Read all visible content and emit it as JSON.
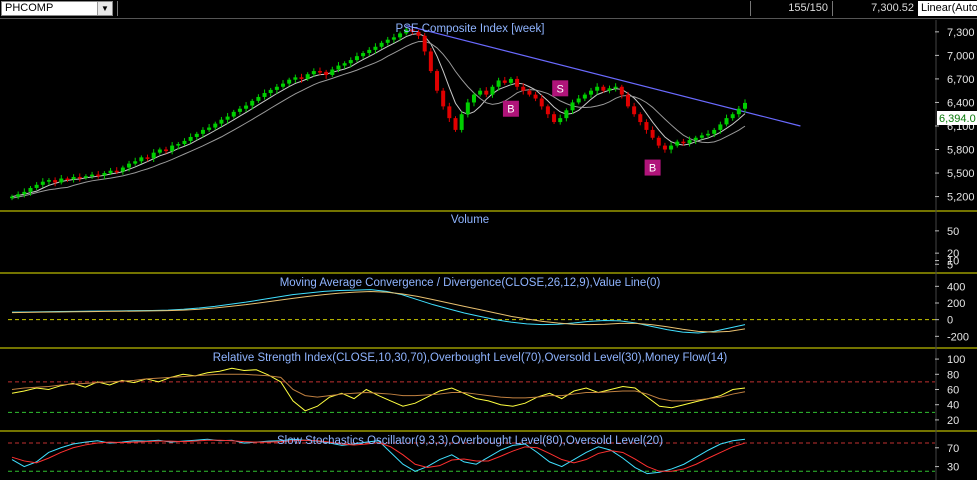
{
  "toolbar": {
    "symbol": "PHCOMP",
    "bars_count": "155/150",
    "last_value": "7,300.52",
    "scale_mode": "Linear(Auto"
  },
  "panels": {
    "price": {
      "title": "PSE Composite Index [week]",
      "current_price_label": "6,394.0"
    },
    "volume": {
      "title": "Volume"
    },
    "macd": {
      "title": "Moving Average Convergence / Divergence(CLOSE,26,12,9),Value Line(0)"
    },
    "rsi": {
      "title": "Relative Strength Index(CLOSE,10,30,70),Overbought Level(70),Oversold Level(30),Money Flow(14)"
    },
    "stoch": {
      "title": "Slow Stochastics Oscillator(9,3,3),Overbought Level(80),Oversold Level(20)"
    }
  },
  "signals": [
    {
      "label": "S",
      "type": "sell",
      "week": 89
    },
    {
      "label": "B",
      "type": "buy",
      "week": 81
    },
    {
      "label": "B",
      "type": "buy",
      "week": 104
    }
  ],
  "colors": {
    "background": "#000000",
    "up_candle": "#00d000",
    "down_candle": "#e00000",
    "ma_line": "#c8c8c8",
    "trendline": "#6a6aff",
    "panel_border": "#e8e800",
    "title_text": "#8fb4ff",
    "macd_line": "#40e0ff",
    "signal_line": "#e8c070",
    "rsi_line": "#ffff40",
    "money_flow_line": "#c08040",
    "stoch_k": "#40e0ff",
    "stoch_d": "#ff3030",
    "signal_marker": "#b0147a"
  },
  "chart_data": [
    {
      "type": "candlestick",
      "title": "PSE Composite Index [week]",
      "yticks": [
        7300,
        7000,
        6700,
        6400,
        6100,
        5800,
        5500,
        5200
      ],
      "ylim": [
        5080,
        7400
      ],
      "close": [
        5200,
        5230,
        5260,
        5310,
        5350,
        5390,
        5410,
        5380,
        5430,
        5420,
        5450,
        5440,
        5460,
        5480,
        5470,
        5500,
        5530,
        5520,
        5570,
        5620,
        5650,
        5700,
        5690,
        5760,
        5800,
        5780,
        5850,
        5870,
        5910,
        5960,
        6000,
        6050,
        6080,
        6130,
        6180,
        6220,
        6280,
        6320,
        6360,
        6420,
        6470,
        6520,
        6560,
        6600,
        6640,
        6690,
        6720,
        6700,
        6760,
        6800,
        6790,
        6750,
        6820,
        6870,
        6900,
        6940,
        6990,
        7030,
        7070,
        7110,
        7160,
        7200,
        7230,
        7280,
        7330,
        7300,
        7250,
        7050,
        6800,
        6550,
        6350,
        6200,
        6050,
        6250,
        6400,
        6500,
        6550,
        6500,
        6600,
        6680,
        6650,
        6700,
        6600,
        6550,
        6500,
        6450,
        6350,
        6250,
        6150,
        6200,
        6300,
        6400,
        6450,
        6500,
        6550,
        6600,
        6550,
        6580,
        6600,
        6500,
        6350,
        6250,
        6150,
        6050,
        5950,
        5850,
        5800,
        5850,
        5900,
        5880,
        5920,
        5950,
        5980,
        6000,
        6050,
        6120,
        6200,
        6250,
        6320,
        6394
      ],
      "ma_fast_weeks": 10,
      "trendline": {
        "from": [
          64,
          7380
        ],
        "to": [
          128,
          6100
        ]
      }
    },
    {
      "type": "bar",
      "title": "Volume",
      "yticks": [
        50,
        20,
        10,
        5
      ],
      "values": []
    },
    {
      "type": "line",
      "title": "Moving Average Convergence / Divergence(CLOSE,26,12,9),Value Line(0)",
      "yticks": [
        400,
        200,
        0,
        -200
      ],
      "ylim": [
        -280,
        500
      ],
      "reference_levels": [
        0
      ],
      "series": [
        {
          "values": [
            90,
            92,
            95,
            98,
            100,
            102,
            104,
            106,
            108,
            110,
            115,
            125,
            140,
            160,
            185,
            210,
            240,
            270,
            300,
            320,
            340,
            350,
            355,
            360,
            340,
            300,
            240,
            180,
            130,
            80,
            40,
            0,
            -30,
            -50,
            -60,
            -55,
            -40,
            -20,
            -10,
            -15,
            -40,
            -80,
            -120,
            -150,
            -160,
            -140,
            -100,
            -60
          ]
        },
        {
          "values": [
            85,
            88,
            90,
            92,
            95,
            97,
            99,
            101,
            103,
            105,
            108,
            115,
            125,
            140,
            160,
            180,
            205,
            230,
            255,
            280,
            300,
            318,
            330,
            338,
            330,
            310,
            280,
            240,
            200,
            160,
            120,
            80,
            40,
            10,
            -20,
            -40,
            -55,
            -60,
            -55,
            -45,
            -45,
            -60,
            -85,
            -115,
            -140,
            -150,
            -140,
            -110
          ]
        }
      ]
    },
    {
      "type": "line",
      "title": "Relative Strength Index(CLOSE,10,30,70),Overbought Level(70),Oversold Level(30),Money Flow(14)",
      "yticks": [
        100,
        80,
        60,
        40,
        20
      ],
      "ylim": [
        12,
        108
      ],
      "reference_levels": [
        70,
        30
      ],
      "series": [
        {
          "values": [
            55,
            58,
            62,
            60,
            65,
            68,
            63,
            70,
            66,
            72,
            69,
            74,
            70,
            76,
            80,
            78,
            82,
            84,
            88,
            85,
            86,
            79,
            70,
            45,
            32,
            38,
            50,
            55,
            48,
            60,
            52,
            45,
            38,
            42,
            50,
            58,
            62,
            55,
            48,
            45,
            40,
            38,
            42,
            50,
            55,
            48,
            58,
            62,
            56,
            60,
            64,
            62,
            50,
            38,
            36,
            40,
            44,
            48,
            52,
            60,
            62
          ]
        },
        {
          "values": [
            60,
            62,
            63,
            64,
            66,
            67,
            68,
            69,
            70,
            71,
            72,
            74,
            75,
            76,
            77,
            78,
            79,
            80,
            80,
            80,
            79,
            78,
            76,
            60,
            52,
            50,
            52,
            54,
            55,
            56,
            55,
            54,
            52,
            52,
            53,
            54,
            56,
            56,
            54,
            52,
            50,
            49,
            49,
            50,
            52,
            52,
            54,
            56,
            56,
            57,
            58,
            58,
            54,
            48,
            45,
            45,
            46,
            48,
            50,
            54,
            57
          ]
        }
      ]
    },
    {
      "type": "line",
      "title": "Slow Stochastics Oscillator(9,3,3),Overbought Level(80),Oversold Level(20)",
      "yticks": [
        70,
        30
      ],
      "ylim": [
        10,
        95
      ],
      "reference_levels": [
        80,
        20
      ],
      "series": [
        {
          "values": [
            45,
            30,
            40,
            60,
            70,
            78,
            82,
            85,
            80,
            82,
            85,
            84,
            86,
            82,
            84,
            86,
            88,
            85,
            86,
            80,
            82,
            84,
            85,
            88,
            86,
            84,
            80,
            75,
            78,
            82,
            85,
            60,
            35,
            20,
            30,
            45,
            55,
            40,
            35,
            50,
            65,
            75,
            78,
            60,
            40,
            30,
            45,
            60,
            72,
            65,
            48,
            28,
            15,
            18,
            25,
            35,
            50,
            65,
            78,
            85,
            88
          ]
        },
        {
          "values": [
            50,
            42,
            38,
            48,
            60,
            70,
            76,
            80,
            82,
            81,
            82,
            83,
            84,
            84,
            83,
            84,
            86,
            86,
            85,
            83,
            82,
            82,
            83,
            85,
            86,
            85,
            82,
            78,
            76,
            78,
            81,
            72,
            55,
            35,
            28,
            32,
            44,
            46,
            42,
            42,
            52,
            63,
            72,
            70,
            58,
            45,
            38,
            45,
            58,
            64,
            60,
            46,
            30,
            20,
            20,
            25,
            35,
            48,
            60,
            72,
            80
          ]
        }
      ]
    }
  ]
}
